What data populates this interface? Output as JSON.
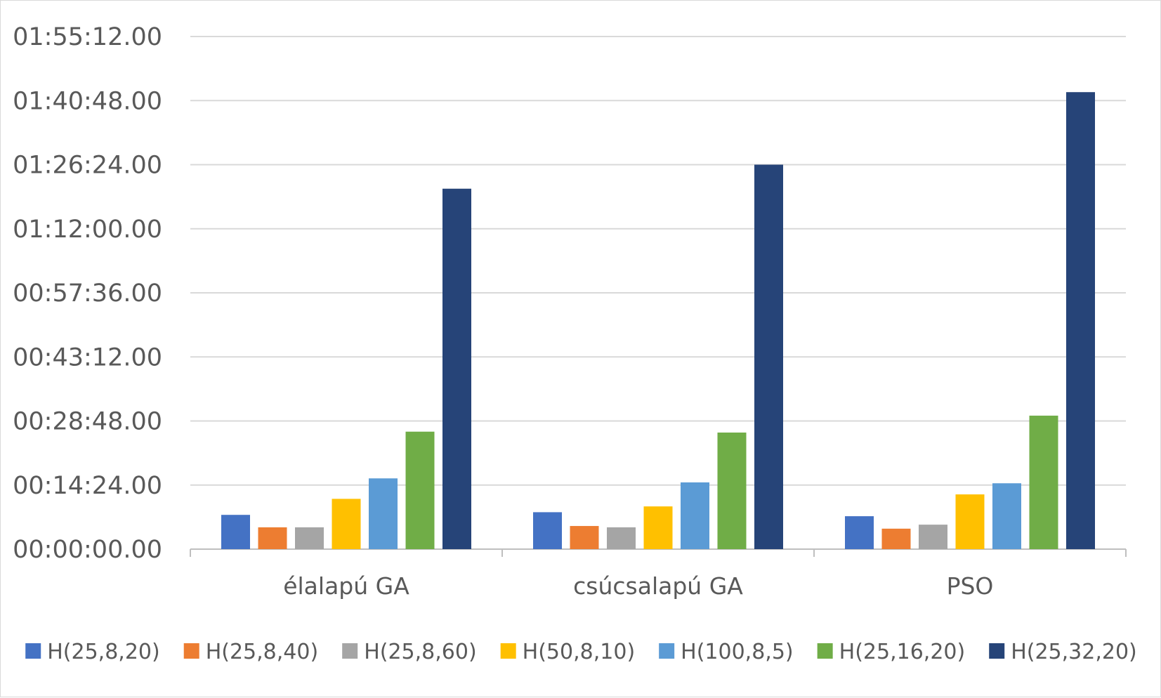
{
  "chart_data": {
    "type": "bar",
    "title": "",
    "xlabel": "",
    "ylabel": "",
    "categories": [
      "élalapú GA",
      "csúcsalapú GA",
      "PSO"
    ],
    "y_tick_labels": [
      "00:00:00.00",
      "00:14:24.00",
      "00:28:48.00",
      "00:43:12.00",
      "00:57:36.00",
      "01:12:00.00",
      "01:26:24.00",
      "01:40:48.00",
      "01:55:12.00"
    ],
    "ylim_minutes": [
      0,
      115.2
    ],
    "y_tick_step_minutes": 14.4,
    "grid": true,
    "legend_position": "bottom",
    "series": [
      {
        "name": "H(25,8,20)",
        "color": "#4472c4",
        "values_minutes": [
          7.7,
          8.3,
          7.4
        ]
      },
      {
        "name": "H(25,8,40)",
        "color": "#ed7d31",
        "values_minutes": [
          4.9,
          5.2,
          4.6
        ]
      },
      {
        "name": "H(25,8,60)",
        "color": "#a5a5a5",
        "values_minutes": [
          4.9,
          4.9,
          5.5
        ]
      },
      {
        "name": "H(50,8,10)",
        "color": "#ffc000",
        "values_minutes": [
          11.3,
          9.6,
          12.3
        ]
      },
      {
        "name": "H(100,8,5)",
        "color": "#5b9bd5",
        "values_minutes": [
          15.9,
          15.0,
          14.8
        ]
      },
      {
        "name": "H(25,16,20)",
        "color": "#70ad47",
        "values_minutes": [
          26.4,
          26.2,
          30.0
        ]
      },
      {
        "name": "H(25,32,20)",
        "color": "#264478",
        "values_minutes": [
          81.0,
          86.4,
          102.7
        ]
      }
    ]
  }
}
